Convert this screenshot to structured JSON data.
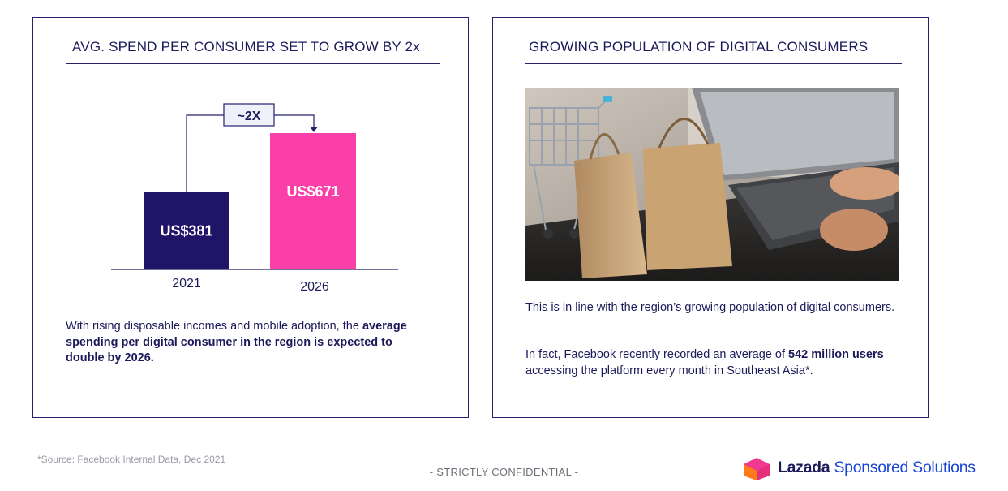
{
  "left_panel": {
    "title": "AVG. SPEND PER CONSUMER SET TO GROW BY 2x",
    "description_plain": "With rising disposable incomes and mobile adoption, the",
    "description_bold": "average spending per digital consumer in the region is expected to double by 2026."
  },
  "chart_data": {
    "type": "bar",
    "categories": [
      "2021",
      "2026"
    ],
    "values": [
      381,
      671
    ],
    "value_labels": [
      "US$381",
      "US$671"
    ],
    "annotation": "~2X",
    "title": "",
    "xlabel": "",
    "ylabel": "",
    "ylim": [
      0,
      700
    ],
    "colors": [
      "#1f1468",
      "#fa3fa8"
    ],
    "grid": false
  },
  "right_panel": {
    "title": "GROWING POPULATION OF DIGITAL CONSUMERS",
    "paragraph1": "This is in line with the region’s growing population of digital consumers.",
    "paragraph2_start": "In fact, Facebook recently recorded an average of ",
    "paragraph2_bold": "542 million users",
    "paragraph2_end": " accessing the platform every month in Southeast Asia*."
  },
  "footer": {
    "source": "*Source: Facebook Internal Data, Dec 2021",
    "confidential": "- STRICTLY CONFIDENTIAL -",
    "brand_name": "Lazada",
    "brand_suffix": "Sponsored Solutions",
    "brand_colors": {
      "primary": "#1d1a5a",
      "accent": "#1a44d8",
      "logo_pink": "#f2388f",
      "logo_orange": "#ff7a1a"
    }
  }
}
